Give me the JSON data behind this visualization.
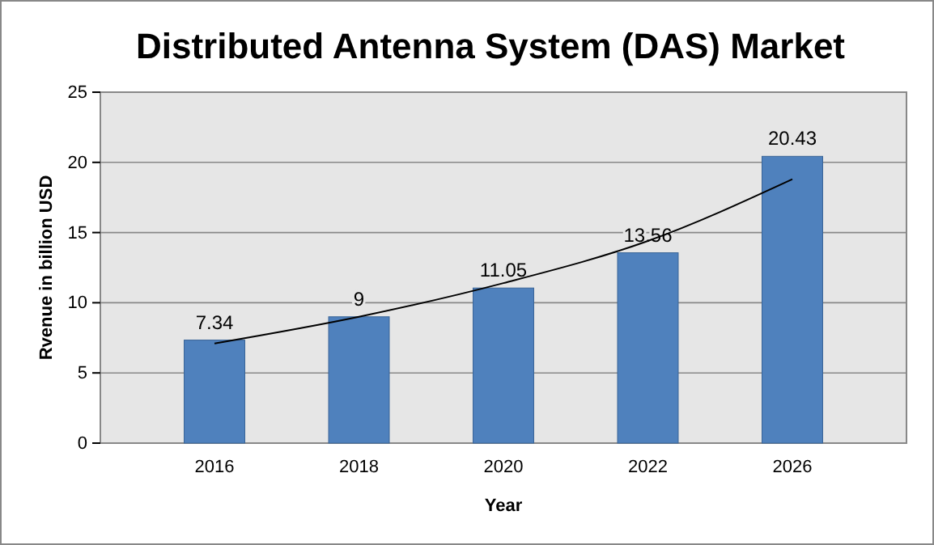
{
  "chart_data": {
    "type": "bar",
    "title": "Distributed Antenna System (DAS) Market",
    "xlabel": "Year",
    "ylabel": "Rvenue in billion USD",
    "categories": [
      "2016",
      "2018",
      "2020",
      "2022",
      "2026"
    ],
    "series": [
      {
        "color": "#4f81bd",
        "values": [
          7.34,
          9,
          11.05,
          13.56,
          20.43
        ],
        "value_labels": [
          "7.34",
          "9",
          "11.05",
          "13.56",
          "20.43"
        ]
      },
      {
        "type": "line",
        "color": "#000000",
        "values": [
          7.1,
          9.0,
          11.4,
          14.4,
          18.8
        ]
      }
    ],
    "ylim": [
      0,
      25
    ],
    "yticks": [
      0,
      5,
      10,
      15,
      20,
      25
    ],
    "grid": "y"
  }
}
